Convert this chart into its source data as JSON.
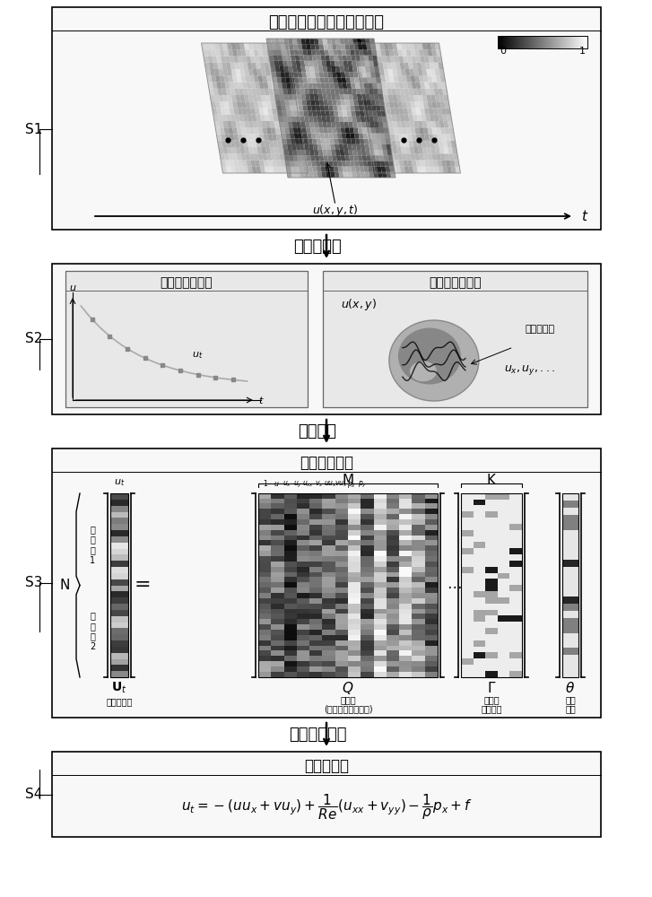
{
  "title": "某二维流场的时空测量数据",
  "arrow1_label": "多项式拟合",
  "arrow2_label": "数値微分",
  "arrow3_label": "双层优化求解",
  "s1_label": "S1",
  "s2_label": "S2",
  "s3_label": "S3",
  "s4_label": "S4",
  "s2_title_left": "时间维局部拟合",
  "s2_title_right": "空间维局部拟合",
  "s2_left_annot": "时间维导数",
  "s2_right_annot": "空间维导数",
  "s3_title": "待发现的方程",
  "s3_M_label": "M",
  "s3_K_label": "K",
  "s3_N_label": "N",
  "s3_Ut_label": "U",
  "s3_Ut_sub": "时间维导数",
  "s3_Q_label": "Q",
  "s3_Q_sub1": "库矩阵",
  "s3_Q_sub2": "(内含空间维导数项)",
  "s3_Gamma_label": "Γ",
  "s3_Gamma_sub1": "方程项",
  "s3_Gamma_sub2": "选择矩阵",
  "s3_theta_label": "θ",
  "s3_theta_sub1": "系数",
  "s3_theta_sub2": "向量",
  "s3_dataset1": "数据集\n1",
  "s3_dataset2": "数据集\n2",
  "s4_title": "发现的方程",
  "bg_color": "#ffffff"
}
